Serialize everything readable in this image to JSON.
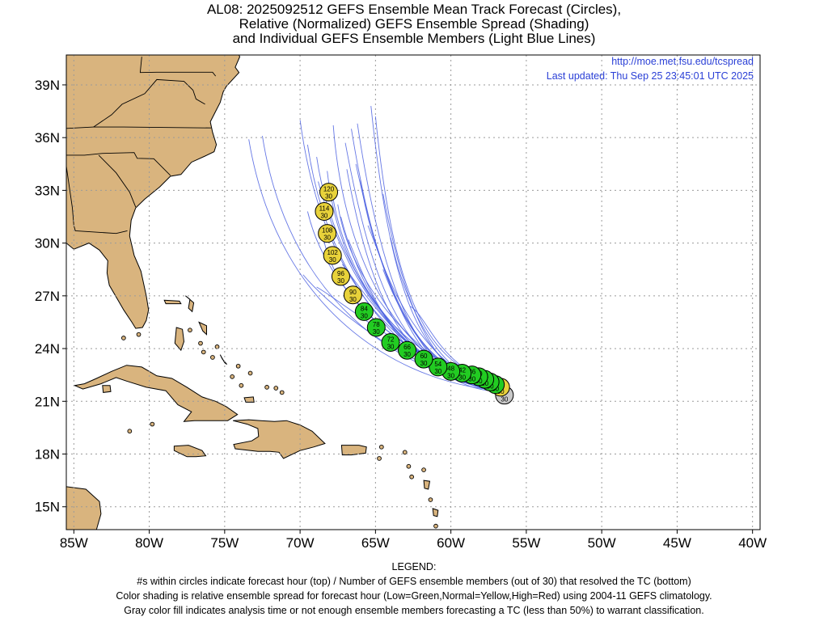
{
  "title": {
    "line1": "AL08: 2025092512 GEFS Ensemble Mean Track Forecast (Circles),",
    "line2": "Relative (Normalized) GEFS Ensemble Spread (Shading)",
    "line3": "and Individual GEFS Ensemble Members (Light Blue Lines)"
  },
  "header_info": {
    "url": "http://moe.met.fsu.edu/tcspread",
    "last_updated": "Last updated: Thu Sep 25 23:45:01 UTC 2025"
  },
  "legend": {
    "heading": "LEGEND:",
    "line1": "#s within circles indicate forecast hour (top) / Number of GEFS ensemble members (out of 30) that resolved the TC (bottom)",
    "line2": "Color shading is relative ensemble spread for forecast hour (Low=Green,Normal=Yellow,High=Red) using 2004-11 GEFS climatology.",
    "line3": "Gray color fill indicates analysis time or not enough ensemble members forecasting a TC (less than 50%) to warrant classification."
  },
  "colors": {
    "land": "#d9b47e",
    "land_outline": "#000000",
    "ocean": "#ffffff",
    "member_lines": "#4a5fe0",
    "grid": "#9a9a9a",
    "low_spread": "#22cc22",
    "normal_spread": "#e8d23a",
    "analysis_gray": "#c8c8c8",
    "url_text": "#2a3fd6"
  },
  "map": {
    "lon_range": [
      -85.5,
      -39.5
    ],
    "lat_range": [
      13.7,
      40.7
    ],
    "lon_ticks": [
      {
        "value": -85,
        "label": "85W"
      },
      {
        "value": -80,
        "label": "80W"
      },
      {
        "value": -75,
        "label": "75W"
      },
      {
        "value": -70,
        "label": "70W"
      },
      {
        "value": -65,
        "label": "65W"
      },
      {
        "value": -60,
        "label": "60W"
      },
      {
        "value": -55,
        "label": "55W"
      },
      {
        "value": -50,
        "label": "50W"
      },
      {
        "value": -45,
        "label": "45W"
      },
      {
        "value": -40,
        "label": "40W"
      }
    ],
    "lat_ticks": [
      {
        "value": 15,
        "label": "15N"
      },
      {
        "value": 18,
        "label": "18N"
      },
      {
        "value": 21,
        "label": "21N"
      },
      {
        "value": 24,
        "label": "24N"
      },
      {
        "value": 27,
        "label": "27N"
      },
      {
        "value": 30,
        "label": "30N"
      },
      {
        "value": 33,
        "label": "33N"
      },
      {
        "value": 36,
        "label": "36N"
      },
      {
        "value": 39,
        "label": "39N"
      }
    ]
  },
  "mean_track": [
    {
      "hour": 0,
      "members": 30,
      "lon": -56.45,
      "lat": 21.35,
      "spread": "gray"
    },
    {
      "hour": 6,
      "members": 30,
      "lon": -56.7,
      "lat": 21.8,
      "spread": "yellow"
    },
    {
      "hour": 12,
      "members": 30,
      "lon": -57.05,
      "lat": 21.95,
      "spread": "green"
    },
    {
      "hour": 18,
      "members": 30,
      "lon": -57.4,
      "lat": 22.1,
      "spread": "green"
    },
    {
      "hour": 24,
      "members": 30,
      "lon": -57.75,
      "lat": 22.25,
      "spread": "green"
    },
    {
      "hour": 30,
      "members": 30,
      "lon": -58.15,
      "lat": 22.4,
      "spread": "green"
    },
    {
      "hour": 36,
      "members": 30,
      "lon": -58.6,
      "lat": 22.5,
      "spread": "green"
    },
    {
      "hour": 42,
      "members": 30,
      "lon": -59.25,
      "lat": 22.6,
      "spread": "green"
    },
    {
      "hour": 48,
      "members": 30,
      "lon": -60.0,
      "lat": 22.7,
      "spread": "green"
    },
    {
      "hour": 54,
      "members": 30,
      "lon": -60.85,
      "lat": 22.95,
      "spread": "green"
    },
    {
      "hour": 60,
      "members": 30,
      "lon": -61.8,
      "lat": 23.4,
      "spread": "green"
    },
    {
      "hour": 66,
      "members": 30,
      "lon": -62.9,
      "lat": 23.9,
      "spread": "green"
    },
    {
      "hour": 72,
      "members": 30,
      "lon": -64.0,
      "lat": 24.35,
      "spread": "green"
    },
    {
      "hour": 78,
      "members": 30,
      "lon": -64.95,
      "lat": 25.2,
      "spread": "green"
    },
    {
      "hour": 84,
      "members": 30,
      "lon": -65.75,
      "lat": 26.1,
      "spread": "green"
    },
    {
      "hour": 90,
      "members": 30,
      "lon": -66.5,
      "lat": 27.05,
      "spread": "yellow"
    },
    {
      "hour": 96,
      "members": 30,
      "lon": -67.3,
      "lat": 28.1,
      "spread": "yellow"
    },
    {
      "hour": 102,
      "members": 30,
      "lon": -67.85,
      "lat": 29.3,
      "spread": "yellow"
    },
    {
      "hour": 108,
      "members": 30,
      "lon": -68.2,
      "lat": 30.55,
      "spread": "yellow"
    },
    {
      "hour": 114,
      "members": 30,
      "lon": -68.4,
      "lat": 31.8,
      "spread": "yellow"
    },
    {
      "hour": 120,
      "members": 30,
      "lon": -68.1,
      "lat": 32.9,
      "spread": "yellow"
    }
  ]
}
